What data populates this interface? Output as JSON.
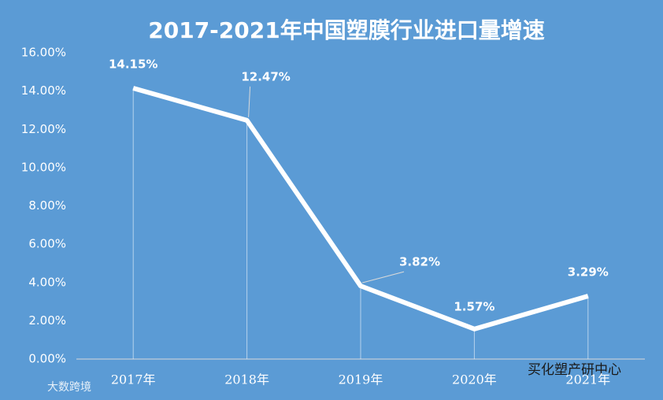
{
  "chart_data": {
    "type": "line",
    "title": "2017-2021年中国塑膜行业进口量增速",
    "categories": [
      "2017年",
      "2018年",
      "2019年",
      "2020年",
      "2021年"
    ],
    "values": [
      14.15,
      12.47,
      3.82,
      1.57,
      3.29
    ],
    "value_labels": [
      "14.15%",
      "12.47%",
      "3.82%",
      "1.57%",
      "3.29%"
    ],
    "color": "#ffffff",
    "ylim": [
      0,
      16
    ],
    "yticks": [
      {
        "value": 0,
        "label": "0.00%"
      },
      {
        "value": 2,
        "label": "2.00%"
      },
      {
        "value": 4,
        "label": "4.00%"
      },
      {
        "value": 6,
        "label": "6.00%"
      },
      {
        "value": 8,
        "label": "8.00%"
      },
      {
        "value": 10,
        "label": "10.00%"
      },
      {
        "value": 12,
        "label": "12.00%"
      },
      {
        "value": 14,
        "label": "14.00%"
      },
      {
        "value": 16,
        "label": "16.00%"
      }
    ],
    "grid": false,
    "drop_lines": true,
    "watermarks": [
      "大数跨境",
      "买化塑产研中心"
    ]
  }
}
